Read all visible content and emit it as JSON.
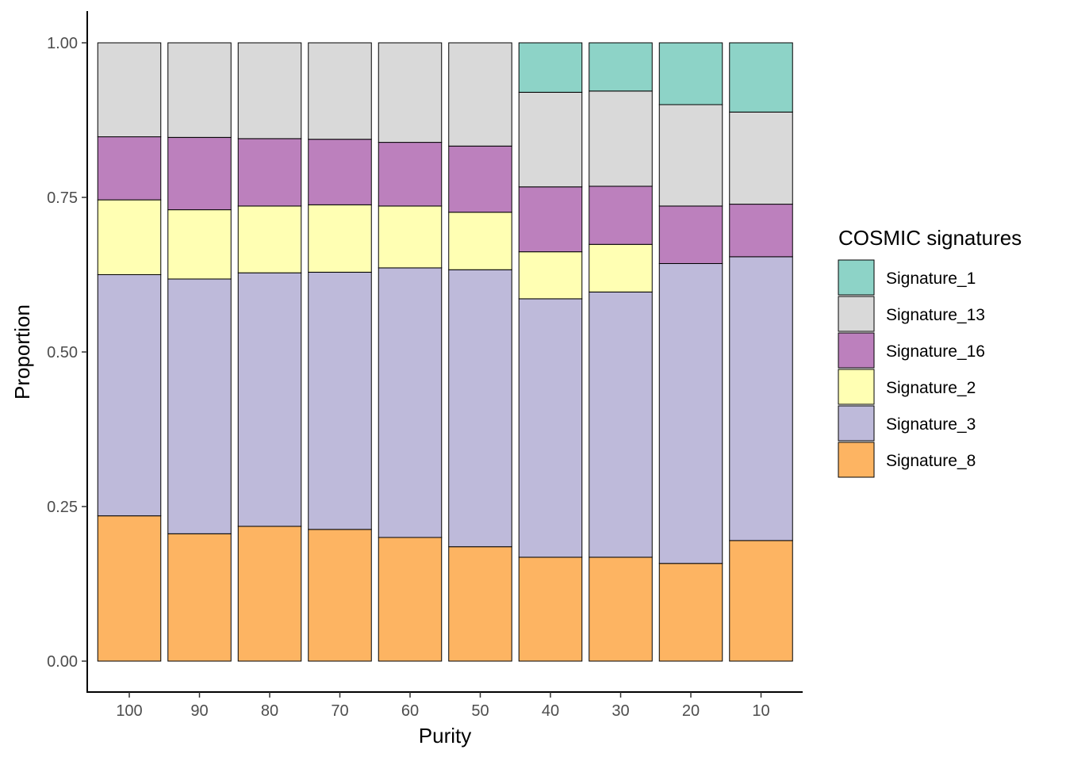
{
  "chart_data": {
    "type": "bar",
    "stacked": true,
    "xlabel": "Purity",
    "ylabel": "Proportion",
    "ylim": [
      0,
      1
    ],
    "yticks": [
      "0.00",
      "0.25",
      "0.50",
      "0.75",
      "1.00"
    ],
    "categories": [
      "100",
      "90",
      "80",
      "70",
      "60",
      "50",
      "40",
      "30",
      "20",
      "10"
    ],
    "legend": {
      "title": "COSMIC signatures",
      "position": "right",
      "entries": [
        "Signature_1",
        "Signature_13",
        "Signature_16",
        "Signature_2",
        "Signature_3",
        "Signature_8"
      ]
    },
    "stack_order_bottom_to_top": [
      "Signature_8",
      "Signature_3",
      "Signature_2",
      "Signature_16",
      "Signature_13",
      "Signature_1"
    ],
    "series": [
      {
        "name": "Signature_1",
        "color": "#8dd3c7",
        "values": [
          0,
          0,
          0,
          0,
          0,
          0,
          0.08,
          0.078,
          0.1,
          0.112
        ]
      },
      {
        "name": "Signature_13",
        "color": "#d9d9d9",
        "values": [
          0.152,
          0.153,
          0.155,
          0.156,
          0.161,
          0.167,
          0.153,
          0.154,
          0.164,
          0.149
        ]
      },
      {
        "name": "Signature_16",
        "color": "#bc80bd",
        "values": [
          0.102,
          0.117,
          0.109,
          0.106,
          0.103,
          0.107,
          0.105,
          0.094,
          0.093,
          0.085
        ]
      },
      {
        "name": "Signature_2",
        "color": "#ffffb3",
        "values": [
          0.121,
          0.112,
          0.108,
          0.109,
          0.1,
          0.093,
          0.076,
          0.077,
          0,
          0
        ]
      },
      {
        "name": "Signature_3",
        "color": "#bebada",
        "values": [
          0.39,
          0.412,
          0.41,
          0.416,
          0.436,
          0.448,
          0.418,
          0.429,
          0.485,
          0.459
        ]
      },
      {
        "name": "Signature_8",
        "color": "#fdb462",
        "values": [
          0.235,
          0.206,
          0.218,
          0.213,
          0.2,
          0.185,
          0.168,
          0.168,
          0.158,
          0.195
        ]
      }
    ]
  }
}
